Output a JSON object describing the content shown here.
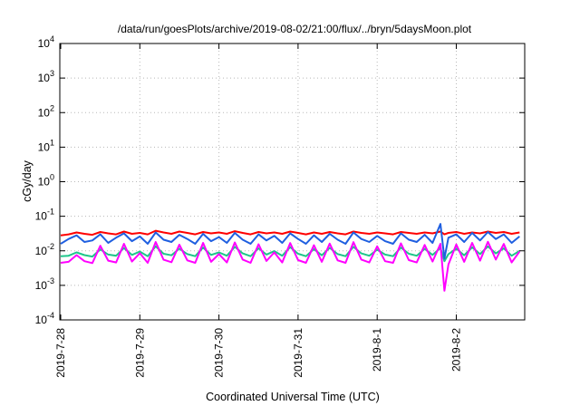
{
  "chart_data": {
    "type": "line",
    "title": "/data/run/goesPlots/archive/2019-08-02/21:00/flux/../bryn/5daysMoon.plot",
    "xlabel": "Coordinated Universal Time (UTC)",
    "ylabel": "cGy/day",
    "yscale": "log",
    "ylim": [
      0.0001,
      10000
    ],
    "xlim": [
      "2019-7-28",
      "2019-8-2 21:00"
    ],
    "grid": true,
    "x_ticks": [
      "2019-7-28",
      "2019-7-29",
      "2019-7-30",
      "2019-7-31",
      "2019-8-1",
      "2019-8-2"
    ],
    "y_ticks": [
      {
        "value": 0.0001,
        "base": "10",
        "exp": "-4"
      },
      {
        "value": 0.001,
        "base": "10",
        "exp": "-3"
      },
      {
        "value": 0.01,
        "base": "10",
        "exp": "-2"
      },
      {
        "value": 0.1,
        "base": "10",
        "exp": "-1"
      },
      {
        "value": 1,
        "base": "10",
        "exp": "0"
      },
      {
        "value": 10,
        "base": "10",
        "exp": "1"
      },
      {
        "value": 100,
        "base": "10",
        "exp": "2"
      },
      {
        "value": 1000,
        "base": "10",
        "exp": "3"
      },
      {
        "value": 10000,
        "base": "10",
        "exp": "4"
      }
    ],
    "x_days": [
      0,
      0.1,
      0.2,
      0.3,
      0.4,
      0.5,
      0.6,
      0.7,
      0.8,
      0.9,
      1.0,
      1.1,
      1.2,
      1.3,
      1.4,
      1.5,
      1.6,
      1.7,
      1.8,
      1.9,
      2.0,
      2.1,
      2.2,
      2.3,
      2.4,
      2.5,
      2.6,
      2.7,
      2.8,
      2.9,
      3.0,
      3.1,
      3.2,
      3.3,
      3.4,
      3.5,
      3.6,
      3.7,
      3.8,
      3.9,
      4.0,
      4.1,
      4.2,
      4.3,
      4.4,
      4.5,
      4.6,
      4.7,
      4.8,
      4.85,
      4.9,
      5.0,
      5.1,
      5.2,
      5.3,
      5.4,
      5.5,
      5.6,
      5.7,
      5.8
    ],
    "series": [
      {
        "color": "#ff0000",
        "values": [
          0.028,
          0.03,
          0.034,
          0.031,
          0.029,
          0.035,
          0.032,
          0.03,
          0.036,
          0.031,
          0.033,
          0.03,
          0.038,
          0.034,
          0.031,
          0.036,
          0.033,
          0.03,
          0.035,
          0.032,
          0.034,
          0.031,
          0.037,
          0.033,
          0.03,
          0.035,
          0.032,
          0.034,
          0.031,
          0.036,
          0.033,
          0.03,
          0.034,
          0.031,
          0.035,
          0.032,
          0.03,
          0.036,
          0.033,
          0.031,
          0.034,
          0.032,
          0.03,
          0.035,
          0.033,
          0.031,
          0.034,
          0.032,
          0.036,
          0.03,
          0.033,
          0.035,
          0.031,
          0.034,
          0.032,
          0.036,
          0.033,
          0.035,
          0.031,
          0.034
        ]
      },
      {
        "color": "#1ec68a",
        "values": [
          0.007,
          0.0072,
          0.009,
          0.0075,
          0.0068,
          0.011,
          0.0078,
          0.0072,
          0.012,
          0.0076,
          0.0095,
          0.007,
          0.0135,
          0.0082,
          0.0074,
          0.0115,
          0.008,
          0.007,
          0.0125,
          0.0076,
          0.009,
          0.0072,
          0.013,
          0.0084,
          0.007,
          0.0118,
          0.0078,
          0.0098,
          0.0072,
          0.0128,
          0.0082,
          0.007,
          0.0112,
          0.0074,
          0.0122,
          0.008,
          0.007,
          0.013,
          0.0084,
          0.0072,
          0.0108,
          0.0078,
          0.007,
          0.0124,
          0.0082,
          0.0072,
          0.0114,
          0.0076,
          0.012,
          0.005,
          0.008,
          0.0116,
          0.0074,
          0.0126,
          0.008,
          0.0134,
          0.0084,
          0.0118,
          0.0072,
          0.01
        ]
      },
      {
        "color": "#1f5fe0",
        "values": [
          0.016,
          0.022,
          0.028,
          0.018,
          0.02,
          0.03,
          0.017,
          0.024,
          0.032,
          0.019,
          0.026,
          0.016,
          0.034,
          0.021,
          0.018,
          0.029,
          0.022,
          0.016,
          0.031,
          0.019,
          0.025,
          0.017,
          0.033,
          0.021,
          0.016,
          0.03,
          0.02,
          0.027,
          0.017,
          0.032,
          0.022,
          0.016,
          0.028,
          0.018,
          0.031,
          0.021,
          0.016,
          0.034,
          0.022,
          0.018,
          0.027,
          0.019,
          0.016,
          0.032,
          0.021,
          0.018,
          0.029,
          0.017,
          0.06,
          0.006,
          0.024,
          0.03,
          0.018,
          0.033,
          0.02,
          0.035,
          0.022,
          0.03,
          0.017,
          0.026
        ]
      },
      {
        "color": "#ff00ff",
        "values": [
          0.0045,
          0.0048,
          0.0075,
          0.005,
          0.0044,
          0.014,
          0.0052,
          0.0046,
          0.016,
          0.0049,
          0.0085,
          0.0045,
          0.018,
          0.0055,
          0.0047,
          0.015,
          0.0053,
          0.0045,
          0.017,
          0.0048,
          0.008,
          0.0046,
          0.0175,
          0.0056,
          0.0045,
          0.0155,
          0.0051,
          0.009,
          0.0046,
          0.0168,
          0.0054,
          0.0045,
          0.0145,
          0.0048,
          0.0162,
          0.0053,
          0.0045,
          0.0178,
          0.0056,
          0.0046,
          0.0135,
          0.005,
          0.0045,
          0.0165,
          0.0054,
          0.0046,
          0.0148,
          0.0049,
          0.016,
          0.0007,
          0.004,
          0.0152,
          0.0048,
          0.017,
          0.0052,
          0.0182,
          0.0056,
          0.0158,
          0.0046,
          0.0095
        ]
      }
    ]
  }
}
